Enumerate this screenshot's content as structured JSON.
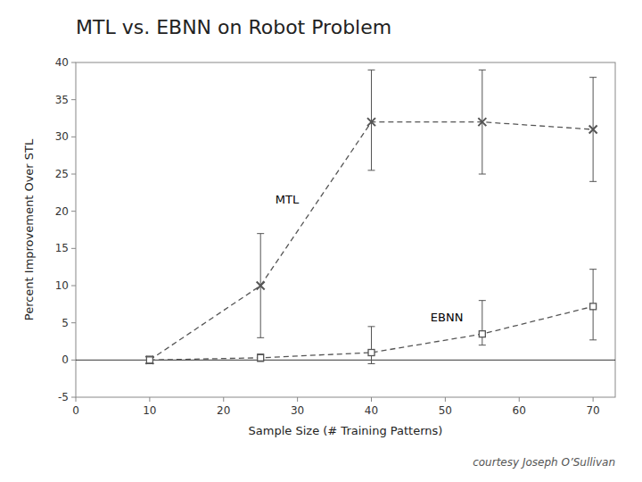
{
  "chart_data": {
    "type": "line",
    "title": "MTL vs. EBNN on Robot Problem",
    "caption": "courtesy Joseph O’Sullivan",
    "x_label": "Sample Size (# Training Patterns)",
    "y_label": "Percent Improvement Over STL",
    "x": [
      10,
      25,
      40,
      55,
      70
    ],
    "series": [
      {
        "name": "MTL",
        "color": "#555555",
        "marker": "x",
        "line_style": "dashed",
        "values": [
          0,
          10,
          32,
          32,
          31
        ],
        "error_low": [
          0.5,
          7,
          6.5,
          7,
          7
        ],
        "error_high": [
          0.5,
          7,
          7,
          7,
          7
        ],
        "label_at": {
          "x": 27,
          "y": 21
        }
      },
      {
        "name": "EBNN",
        "color": "#555555",
        "marker": "square",
        "line_style": "dashed",
        "values": [
          0,
          0.3,
          1,
          3.5,
          7.2
        ],
        "error_low": [
          0.5,
          0.5,
          1.5,
          1.5,
          4.5
        ],
        "error_high": [
          0.5,
          0.5,
          3.5,
          4.5,
          5
        ],
        "label_at": {
          "x": 48,
          "y": 5.2
        }
      }
    ],
    "baseline": 0,
    "xlim": [
      0,
      73
    ],
    "ylim": [
      -5,
      40
    ],
    "xticks": [
      0,
      10,
      20,
      30,
      40,
      50,
      60,
      70
    ],
    "yticks": [
      -5,
      0,
      5,
      10,
      15,
      20,
      25,
      30,
      35,
      40
    ],
    "grid": false
  }
}
